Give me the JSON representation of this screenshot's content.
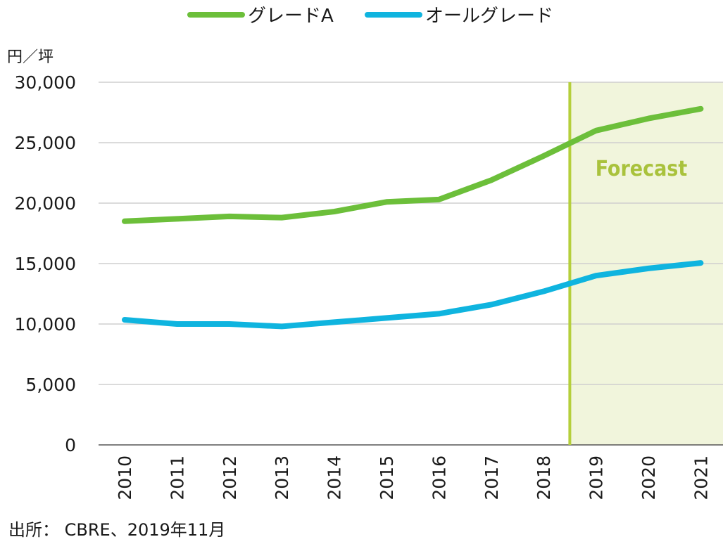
{
  "chart_data": {
    "type": "line",
    "categories": [
      "2010",
      "2011",
      "2012",
      "2013",
      "2014",
      "2015",
      "2016",
      "2017",
      "2018",
      "2019",
      "2020",
      "2021"
    ],
    "series": [
      {
        "name": "グレードA",
        "color": "#6cbf3a",
        "values": [
          18500,
          18700,
          18900,
          18800,
          19300,
          20100,
          20300,
          21900,
          23900,
          26000,
          27000,
          27800
        ]
      },
      {
        "name": "オールグレード",
        "color": "#0fb4df",
        "values": [
          10350,
          10000,
          10000,
          9800,
          10150,
          10500,
          10850,
          11600,
          12700,
          14000,
          14600,
          15050
        ]
      }
    ],
    "ylim": [
      0,
      30000
    ],
    "yticks": [
      0,
      5000,
      10000,
      15000,
      20000,
      25000,
      30000
    ],
    "ytick_labels": [
      "0",
      "5,000",
      "10,000",
      "15,000",
      "20,000",
      "25,000",
      "30,000"
    ],
    "ylabel": "円／坪",
    "xlabel": "",
    "grid": true,
    "legend_position": "top",
    "forecast": {
      "label": "Forecast",
      "start_x": 2018.5,
      "end_x": 2021.5,
      "line_color": "#b5cf3b",
      "fill_color": "#f1f5dc",
      "text_color": "#a9c23c"
    },
    "source": "出所： CBRE、2019年11月"
  }
}
